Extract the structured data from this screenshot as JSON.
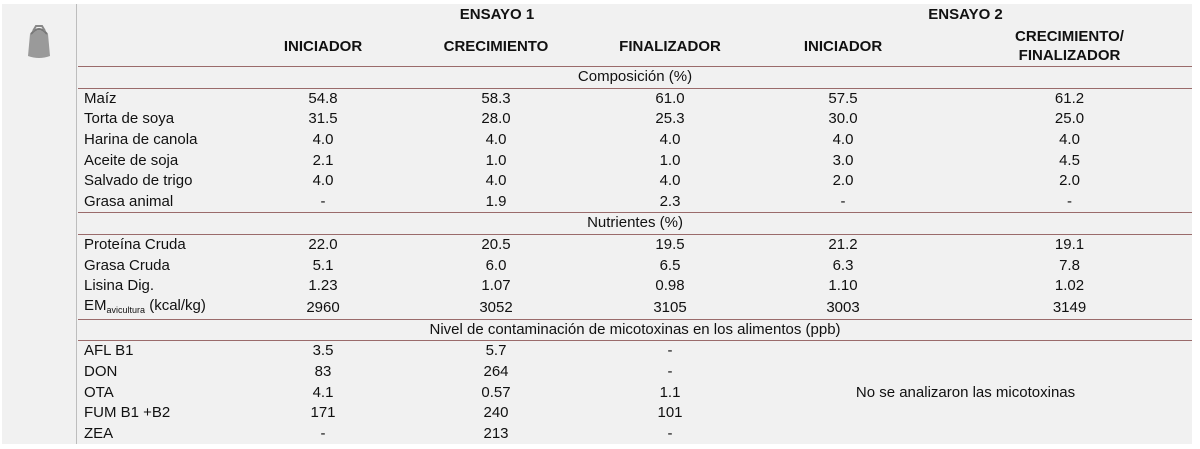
{
  "header": {
    "groups": [
      "ENSAYO 1",
      "ENSAYO 2"
    ],
    "columns": [
      "INICIADOR",
      "CRECIMIENTO",
      "FINALIZADOR",
      "INICIADOR",
      [
        "CRECIMIENTO/",
        "FINALIZADOR"
      ]
    ]
  },
  "sections": [
    {
      "title": "Composición (%)",
      "rows": [
        {
          "label": "Maíz",
          "values": [
            "54.8",
            "58.3",
            "61.0",
            "57.5",
            "61.2"
          ]
        },
        {
          "label": "Torta de soya",
          "values": [
            "31.5",
            "28.0",
            "25.3",
            "30.0",
            "25.0"
          ]
        },
        {
          "label": "Harina de canola",
          "values": [
            "4.0",
            "4.0",
            "4.0",
            "4.0",
            "4.0"
          ]
        },
        {
          "label": "Aceite de soja",
          "values": [
            "2.1",
            "1.0",
            "1.0",
            "3.0",
            "4.5"
          ]
        },
        {
          "label": "Salvado de trigo",
          "values": [
            "4.0",
            "4.0",
            "4.0",
            "2.0",
            "2.0"
          ]
        },
        {
          "label": "Grasa animal",
          "values": [
            "-",
            "1.9",
            "2.3",
            "-",
            "-"
          ]
        }
      ]
    },
    {
      "title": "Nutrientes (%)",
      "rows": [
        {
          "label": "Proteína Cruda",
          "values": [
            "22.0",
            "20.5",
            "19.5",
            "21.2",
            "19.1"
          ]
        },
        {
          "label": "Grasa Cruda",
          "values": [
            "5.1",
            "6.0",
            "6.5",
            "6.3",
            "7.8"
          ]
        },
        {
          "label": "Lisina Dig.",
          "values": [
            "1.23",
            "1.07",
            "0.98",
            "1.10",
            "1.02"
          ]
        },
        {
          "label": [
            "EM",
            "avicultura",
            "(kcal/kg)"
          ],
          "values": [
            "2960",
            "3052",
            "3105",
            "3003",
            "3149"
          ]
        }
      ]
    },
    {
      "title": "Nivel de contaminación de micotoxinas en los alimentos (ppb)",
      "note": "No se analizaron las micotoxinas",
      "rows": [
        {
          "label": "AFL B1",
          "values": [
            "3.5",
            "5.7",
            "-"
          ]
        },
        {
          "label": "DON",
          "values": [
            "83",
            "264",
            "-"
          ]
        },
        {
          "label": "OTA",
          "values": [
            "4.1",
            "0.57",
            "1.1"
          ]
        },
        {
          "label": "FUM B1 +B2",
          "values": [
            "171",
            "240",
            "101"
          ]
        },
        {
          "label": "ZEA",
          "values": [
            "-",
            "213",
            "-"
          ]
        }
      ]
    }
  ]
}
